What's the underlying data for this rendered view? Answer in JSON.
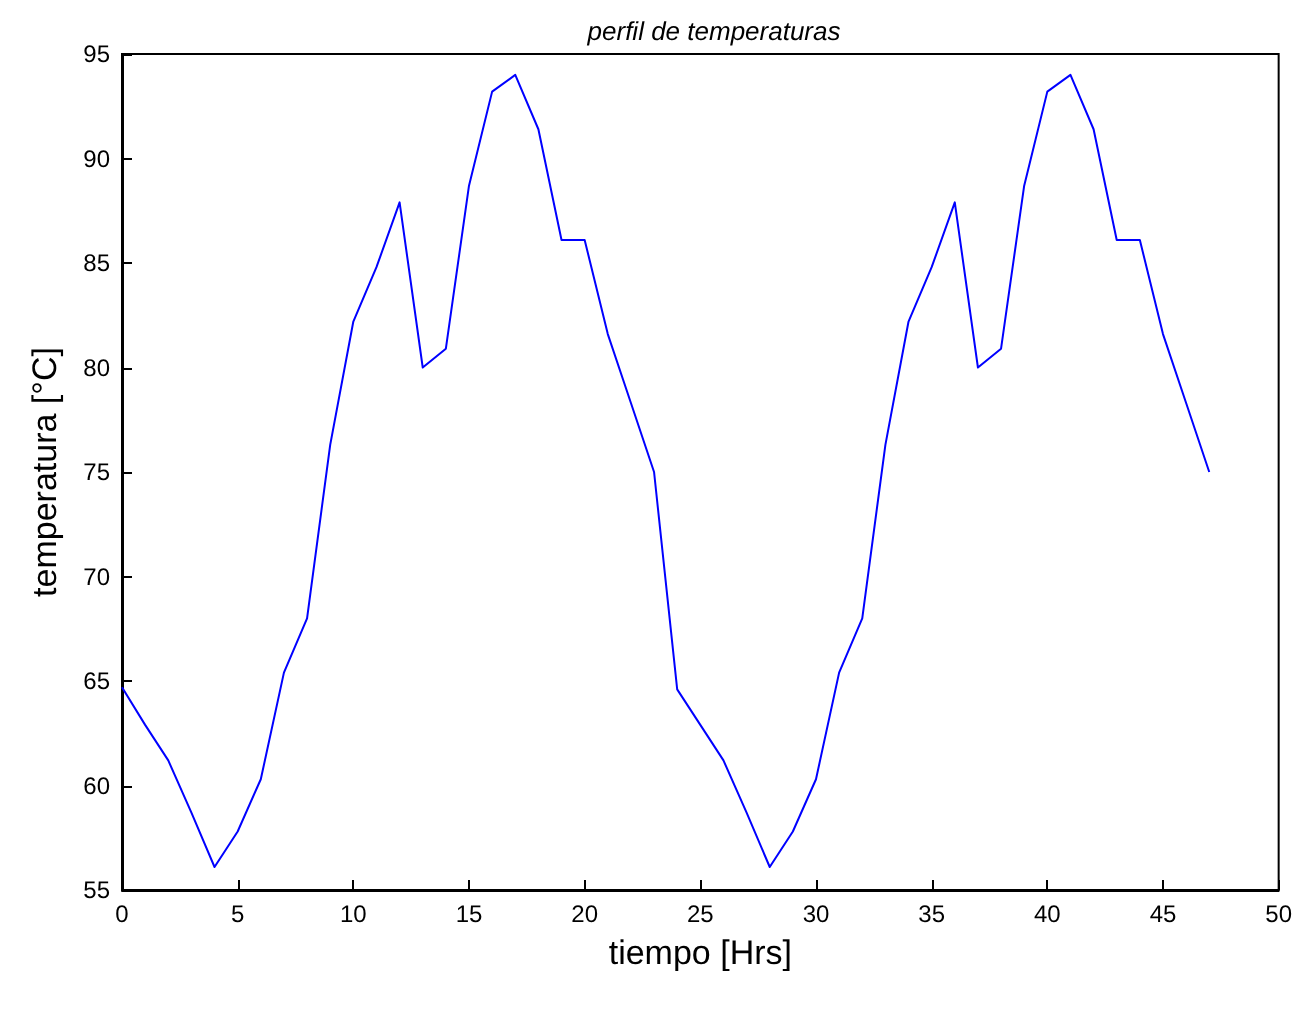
{
  "chart_data": {
    "type": "line",
    "title": "perfil de temperaturas",
    "xlabel": "tiempo [Hrs]",
    "ylabel": "temperatura [°C]",
    "x": [
      0,
      1,
      2,
      3,
      4,
      5,
      6,
      7,
      8,
      9,
      10,
      11,
      12,
      13,
      14,
      15,
      16,
      17,
      18,
      19,
      20,
      21,
      22,
      23,
      24,
      25,
      26,
      27,
      28,
      29,
      30,
      31,
      32,
      33,
      34,
      35,
      36,
      37,
      38,
      39,
      40,
      41,
      42,
      43,
      44,
      45,
      46,
      47
    ],
    "series": [
      {
        "color": "#0000ff",
        "values": [
          64.7,
          62.9,
          61.2,
          58.7,
          56.1,
          57.8,
          60.3,
          65.4,
          68.0,
          76.3,
          82.2,
          84.8,
          87.9,
          80.0,
          80.9,
          88.7,
          93.2,
          94.0,
          91.4,
          86.1,
          86.1,
          81.6,
          78.3,
          75.0,
          64.6,
          62.9,
          61.2,
          58.7,
          56.1,
          57.8,
          60.3,
          65.4,
          68.0,
          76.3,
          82.2,
          84.8,
          87.9,
          80.0,
          80.9,
          88.7,
          93.2,
          94.0,
          91.4,
          86.1,
          86.1,
          81.6,
          78.3,
          75.0
        ]
      }
    ],
    "xlim": [
      0,
      50
    ],
    "xticks": [
      0,
      5,
      10,
      15,
      20,
      25,
      30,
      35,
      40,
      45,
      50
    ],
    "ylim": [
      55,
      95
    ],
    "yticks": [
      55,
      60,
      65,
      70,
      75,
      80,
      85,
      90,
      95
    ],
    "grid": false,
    "legend": false,
    "marker": "none",
    "line_style": "solid"
  }
}
